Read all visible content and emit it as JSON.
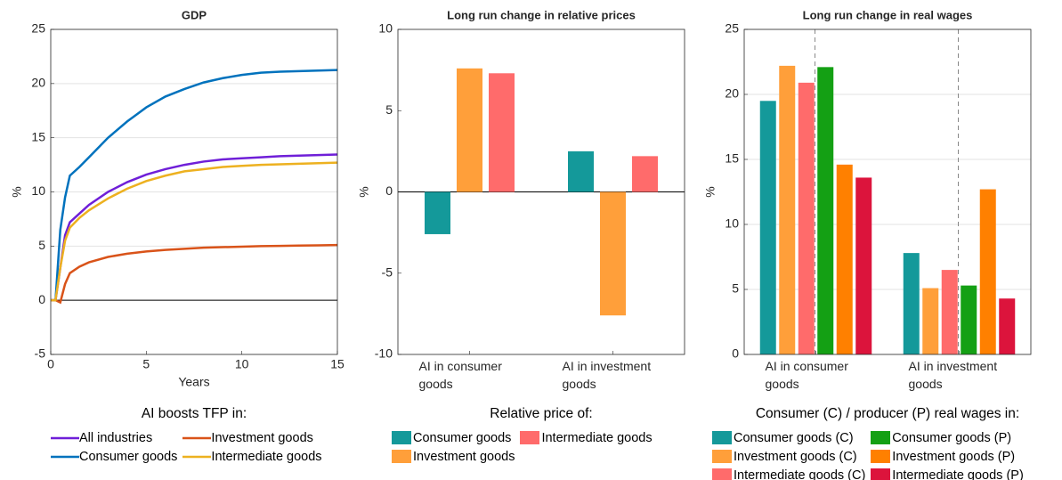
{
  "chart_data": [
    {
      "type": "line",
      "title": "GDP",
      "xlabel": "Years",
      "ylabel": "%",
      "legend_title": "AI boosts TFP in:",
      "x": [
        0,
        0.25,
        0.5,
        0.75,
        1,
        1.5,
        2,
        3,
        4,
        5,
        6,
        7,
        8,
        9,
        10,
        11,
        12,
        13,
        14,
        15
      ],
      "series": [
        {
          "name": "All industries",
          "color": "#6f1fd8",
          "values": [
            0,
            0,
            3,
            6,
            7.2,
            8,
            8.8,
            10,
            10.9,
            11.6,
            12.1,
            12.5,
            12.8,
            13,
            13.1,
            13.2,
            13.3,
            13.35,
            13.4,
            13.45
          ]
        },
        {
          "name": "Consumer goods",
          "color": "#0072bd",
          "values": [
            0,
            0,
            6.5,
            9.5,
            11.5,
            12.3,
            13.2,
            15,
            16.5,
            17.8,
            18.8,
            19.5,
            20.1,
            20.5,
            20.8,
            21,
            21.1,
            21.15,
            21.2,
            21.25
          ]
        },
        {
          "name": "Investment goods",
          "color": "#d95319",
          "values": [
            0,
            0,
            -0.2,
            1.5,
            2.5,
            3.1,
            3.5,
            4,
            4.3,
            4.5,
            4.65,
            4.75,
            4.85,
            4.9,
            4.95,
            5,
            5.02,
            5.05,
            5.07,
            5.1
          ]
        },
        {
          "name": "Intermediate goods",
          "color": "#edb120",
          "values": [
            0,
            0,
            3,
            5.5,
            6.7,
            7.6,
            8.3,
            9.4,
            10.3,
            11,
            11.5,
            11.9,
            12.1,
            12.3,
            12.4,
            12.5,
            12.55,
            12.6,
            12.65,
            12.7
          ]
        }
      ],
      "xlim": [
        0,
        15
      ],
      "xticks": [
        0,
        5,
        10,
        15
      ],
      "ylim": [
        -5,
        25
      ],
      "yticks": [
        -5,
        0,
        5,
        10,
        15,
        20,
        25
      ],
      "grid": true,
      "legend_rows": 2
    },
    {
      "type": "bar",
      "title": "Long run change in relative prices",
      "ylabel": "%",
      "legend_title": "Relative price of:",
      "categories": [
        "AI in consumer goods",
        "AI in investment goods"
      ],
      "series": [
        {
          "name": "Consumer goods",
          "color": "#14999a",
          "values": [
            -2.6,
            2.5
          ]
        },
        {
          "name": "Investment goods",
          "color": "#ff9f3a",
          "values": [
            7.6,
            -7.6
          ]
        },
        {
          "name": "Intermediate goods",
          "color": "#ff6b6b",
          "values": [
            7.3,
            2.2
          ]
        }
      ],
      "ylim": [
        -10,
        10
      ],
      "yticks": [
        -10,
        -5,
        0,
        5,
        10
      ],
      "grid": false,
      "legend_rows": 2
    },
    {
      "type": "bar",
      "title": "Long run change in real wages",
      "ylabel": "%",
      "legend_title": "Consumer (C) / producer (P) real wages in:",
      "categories": [
        "AI in consumer goods",
        "AI in investment goods"
      ],
      "series": [
        {
          "name": "Consumer goods (C)",
          "color": "#14999a",
          "values": [
            19.5,
            7.8
          ]
        },
        {
          "name": "Investment goods (C)",
          "color": "#ff9f3a",
          "values": [
            22.2,
            5.1
          ]
        },
        {
          "name": "Intermediate goods (C)",
          "color": "#ff6b6b",
          "values": [
            20.9,
            6.5
          ]
        },
        {
          "name": "Consumer goods (P)",
          "color": "#14a014",
          "values": [
            22.1,
            5.3
          ]
        },
        {
          "name": "Investment goods (P)",
          "color": "#ff8000",
          "values": [
            14.6,
            12.7
          ]
        },
        {
          "name": "Intermediate goods (P)",
          "color": "#dc143c",
          "values": [
            13.6,
            4.3
          ]
        }
      ],
      "ylim": [
        0,
        25
      ],
      "yticks": [
        0,
        5,
        10,
        15,
        20,
        25
      ],
      "grid": true,
      "legend_rows": 3
    }
  ]
}
